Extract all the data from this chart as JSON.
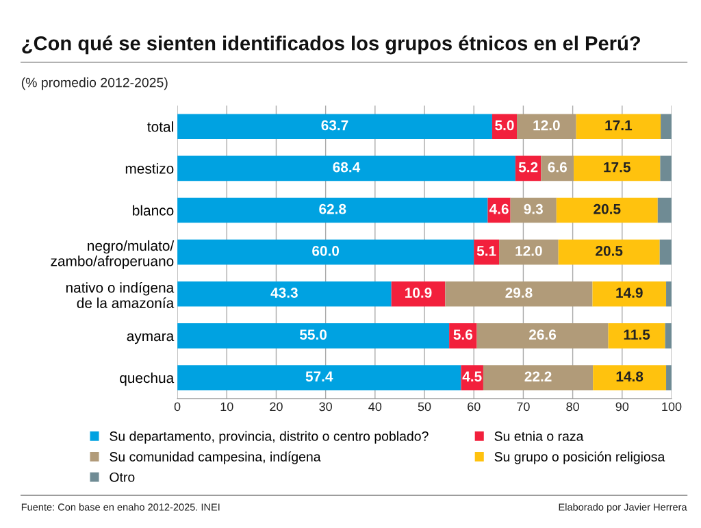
{
  "chart_data": {
    "type": "bar",
    "orientation": "horizontal",
    "stacked": true,
    "title": "¿Con qué se sienten identificados los grupos étnicos en el Perú?",
    "subtitle": "(% promedio 2012-2025)",
    "categories": [
      "total",
      "mestizo",
      "blanco",
      "negro/mulato/\nzambo/afroperuano",
      "nativo o indígena\nde la amazonía",
      "aymara",
      "quechua"
    ],
    "series": [
      {
        "name": "Su departamento, provincia, distrito o centro poblado?",
        "color": "#00a2e1",
        "values": [
          63.7,
          68.4,
          62.8,
          60.0,
          43.3,
          55.0,
          57.4
        ],
        "value_labels": [
          "63.7",
          "68.4",
          "62.8",
          "60.0",
          "43.3",
          "55.0",
          "57.4"
        ]
      },
      {
        "name": "Su etnia o raza",
        "color": "#f2203c",
        "values": [
          5.0,
          5.2,
          4.6,
          5.1,
          10.9,
          5.6,
          4.5
        ],
        "value_labels": [
          "5.0",
          "5.2",
          "4.6",
          "5.1",
          "10.9",
          "5.6",
          "4.5"
        ]
      },
      {
        "name": "Su comunidad campesina, indígena",
        "color": "#b19b79",
        "values": [
          12.0,
          6.6,
          9.3,
          12.0,
          29.8,
          26.6,
          22.2
        ],
        "value_labels": [
          "12.0",
          "6.6",
          "9.3",
          "12.0",
          "29.8",
          "26.6",
          "22.2"
        ]
      },
      {
        "name": "Su grupo o posición religiosa",
        "color": "#ffc20e",
        "values": [
          17.1,
          17.5,
          20.5,
          20.5,
          14.9,
          11.5,
          14.8
        ],
        "value_labels": [
          "17.1",
          "17.5",
          "20.5",
          "20.5",
          "14.9",
          "11.5",
          "14.8"
        ]
      },
      {
        "name": "Otro",
        "color": "#6f8b94",
        "values": [
          2.2,
          2.3,
          2.8,
          2.4,
          1.1,
          1.3,
          1.1
        ],
        "value_labels": [
          null,
          null,
          null,
          null,
          null,
          null,
          null
        ]
      }
    ],
    "xlim": [
      0,
      100
    ],
    "xticks": [
      0,
      10,
      20,
      30,
      40,
      50,
      60,
      70,
      80,
      90,
      100
    ],
    "grid": "x",
    "legend": "bottom",
    "annotations": [
      "Fuente: Con base en enaho 2012-2025. INEI",
      "Elaborado por Javier Herrera"
    ]
  }
}
